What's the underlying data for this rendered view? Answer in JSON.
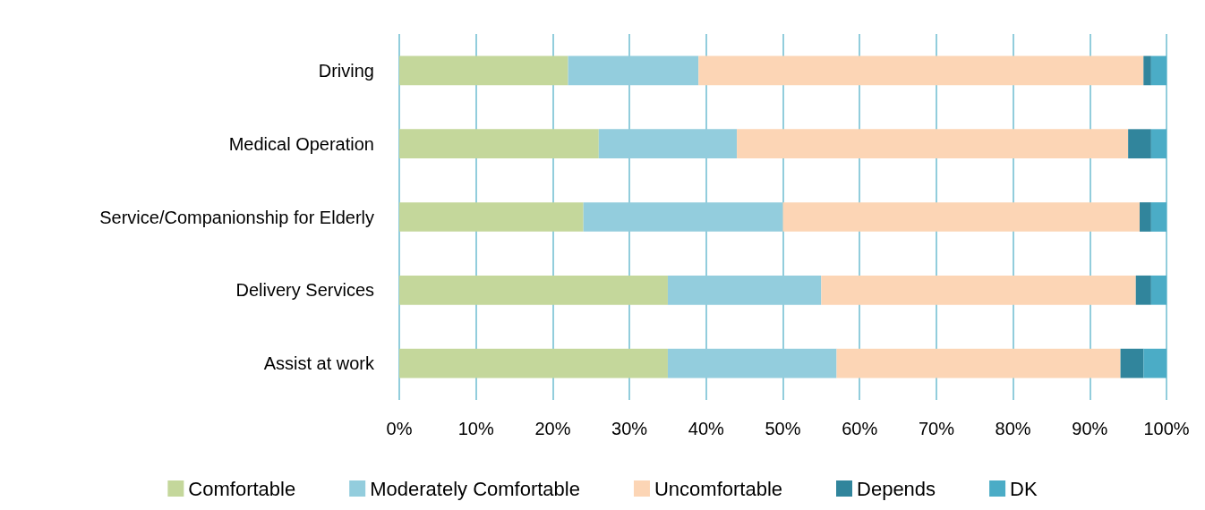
{
  "chart_data": {
    "type": "bar",
    "orientation": "horizontal",
    "stacked": true,
    "categories": [
      "Driving",
      "Medical Operation",
      "Service/Companionship for Elderly",
      "Delivery Services",
      "Assist at work"
    ],
    "series": [
      {
        "name": "Comfortable",
        "color": "#c4d79b",
        "values": [
          22,
          26,
          24,
          35,
          35
        ]
      },
      {
        "name": "Moderately Comfortable",
        "color": "#93cddd",
        "values": [
          17,
          18,
          26,
          20,
          22
        ]
      },
      {
        "name": "Uncomfortable",
        "color": "#fcd5b5",
        "values": [
          58,
          51,
          46.5,
          41,
          37
        ]
      },
      {
        "name": "Depends",
        "color": "#31859c",
        "values": [
          1,
          3,
          1.5,
          2,
          3
        ]
      },
      {
        "name": "DK",
        "color": "#4bacc6",
        "values": [
          2,
          2,
          2,
          2,
          3
        ]
      }
    ],
    "xlim": [
      0,
      100
    ],
    "xticks": [
      {
        "value": 0,
        "label": "0%"
      },
      {
        "value": 10,
        "label": "10%"
      },
      {
        "value": 20,
        "label": "20%"
      },
      {
        "value": 30,
        "label": "30%"
      },
      {
        "value": 40,
        "label": "40%"
      },
      {
        "value": 50,
        "label": "50%"
      },
      {
        "value": 60,
        "label": "60%"
      },
      {
        "value": 70,
        "label": "70%"
      },
      {
        "value": 80,
        "label": "80%"
      },
      {
        "value": 90,
        "label": "90%"
      },
      {
        "value": 100,
        "label": "100%"
      }
    ],
    "grid": "x",
    "legend": "bottom"
  }
}
